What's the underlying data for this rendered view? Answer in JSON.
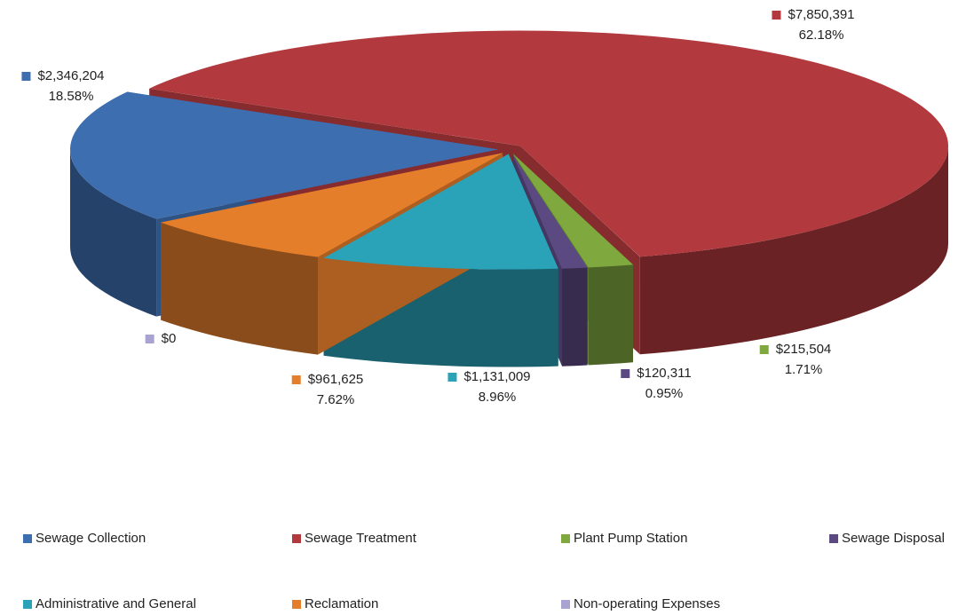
{
  "chart_data": {
    "type": "pie",
    "categories": [
      "Sewage Collection",
      "Sewage Treatment",
      "Plant Pump Station",
      "Sewage Disposal",
      "Administrative and General",
      "Reclamation",
      "Non-operating Expenses"
    ],
    "values": [
      2346204,
      7850391,
      215504,
      120311,
      1131009,
      961625,
      0
    ],
    "value_labels": [
      "$2,346,204",
      "$7,850,391",
      "$215,504",
      "$120,311",
      "$1,131,009",
      "$961,625",
      "$0"
    ],
    "percentages": [
      18.58,
      62.18,
      1.71,
      0.95,
      8.96,
      7.62,
      null
    ],
    "percentage_labels": [
      "18.58%",
      "62.18%",
      "1.71%",
      "0.95%",
      "8.96%",
      "7.62%",
      null
    ],
    "colors": [
      "#3d6eb0",
      "#b2393d",
      "#7fa83f",
      "#5b4a82",
      "#2aa2b8",
      "#e57e2b",
      "#a8a3d0"
    ],
    "legend": "bottom"
  }
}
